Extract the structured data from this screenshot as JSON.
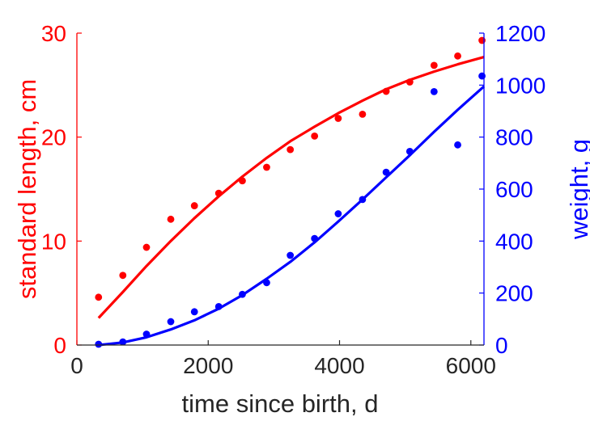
{
  "chart_data": {
    "type": "scatter",
    "xlabel": "time since birth, d",
    "ylabel_left": "standard length, cm",
    "ylabel_right": "weight, g",
    "xlim": [
      0,
      6200
    ],
    "ylim_left": [
      0,
      30
    ],
    "ylim_right": [
      0,
      1200
    ],
    "xticks": [
      0,
      2000,
      4000,
      6000
    ],
    "yticks_left": [
      0,
      10,
      20,
      30
    ],
    "yticks_right": [
      0,
      200,
      400,
      600,
      800,
      1000,
      1200
    ],
    "grid": false,
    "colors": {
      "left": "#ff0000",
      "right": "#0000ff",
      "axes": "#262626"
    },
    "series": [
      {
        "axis": "left",
        "color": "#ff0000",
        "points": [
          [
            330,
            4.6
          ],
          [
            700,
            6.7
          ],
          [
            1060,
            9.4
          ],
          [
            1430,
            12.1
          ],
          [
            1790,
            13.4
          ],
          [
            2160,
            14.6
          ],
          [
            2520,
            15.8
          ],
          [
            2890,
            17.1
          ],
          [
            3250,
            18.8
          ],
          [
            3620,
            20.1
          ],
          [
            3980,
            21.8
          ],
          [
            4350,
            22.2
          ],
          [
            4710,
            24.4
          ],
          [
            5070,
            25.3
          ],
          [
            5440,
            26.9
          ],
          [
            5800,
            27.8
          ],
          [
            6170,
            29.3
          ]
        ],
        "fit": [
          [
            330,
            2.6
          ],
          [
            700,
            5.1
          ],
          [
            1060,
            7.6
          ],
          [
            1430,
            10.0
          ],
          [
            1790,
            12.2
          ],
          [
            2160,
            14.3
          ],
          [
            2520,
            16.2
          ],
          [
            2890,
            18.0
          ],
          [
            3250,
            19.6
          ],
          [
            3620,
            21.0
          ],
          [
            3980,
            22.3
          ],
          [
            4350,
            23.5
          ],
          [
            4710,
            24.6
          ],
          [
            5070,
            25.5
          ],
          [
            5440,
            26.3
          ],
          [
            5800,
            27.0
          ],
          [
            6200,
            27.7
          ]
        ]
      },
      {
        "axis": "right",
        "color": "#0000ff",
        "points": [
          [
            330,
            3
          ],
          [
            700,
            12
          ],
          [
            1060,
            42
          ],
          [
            1430,
            90
          ],
          [
            1790,
            128
          ],
          [
            2160,
            148
          ],
          [
            2520,
            195
          ],
          [
            2890,
            240
          ],
          [
            3250,
            345
          ],
          [
            3620,
            410
          ],
          [
            3980,
            505
          ],
          [
            4350,
            560
          ],
          [
            4710,
            665
          ],
          [
            5070,
            745
          ],
          [
            5440,
            975
          ],
          [
            5800,
            770
          ],
          [
            6170,
            1035
          ]
        ],
        "fit": [
          [
            330,
            0
          ],
          [
            700,
            10
          ],
          [
            1060,
            30
          ],
          [
            1430,
            60
          ],
          [
            1790,
            95
          ],
          [
            2160,
            140
          ],
          [
            2520,
            192
          ],
          [
            2890,
            255
          ],
          [
            3250,
            320
          ],
          [
            3620,
            395
          ],
          [
            3980,
            475
          ],
          [
            4350,
            560
          ],
          [
            4710,
            645
          ],
          [
            5070,
            730
          ],
          [
            5440,
            820
          ],
          [
            5800,
            905
          ],
          [
            6200,
            995
          ]
        ]
      }
    ]
  }
}
